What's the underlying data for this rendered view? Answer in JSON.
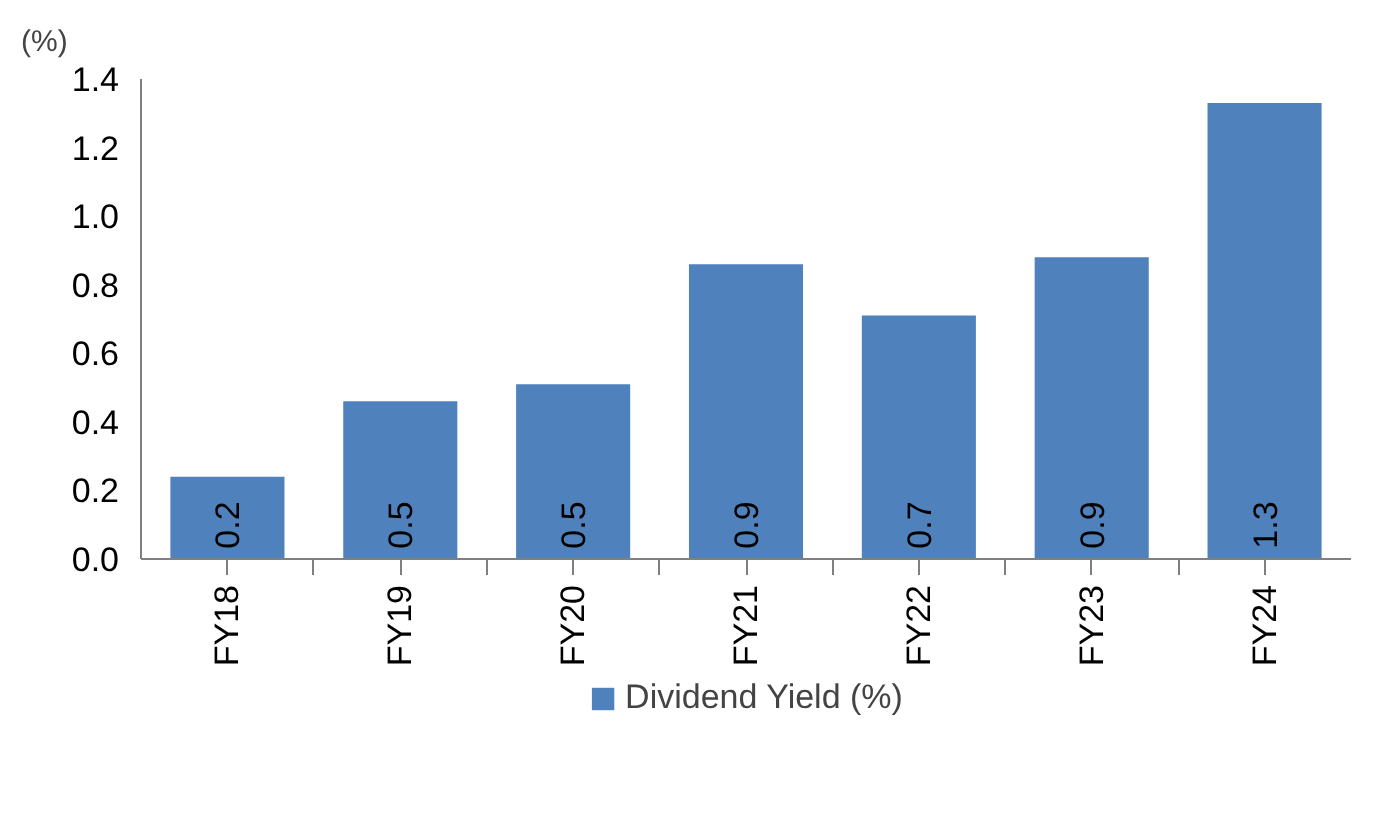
{
  "chart_data": {
    "type": "bar",
    "ylabel": "(%)",
    "categories": [
      "FY18",
      "FY19",
      "FY20",
      "FY21",
      "FY22",
      "FY23",
      "FY24"
    ],
    "series": [
      {
        "name": "Dividend Yield (%)",
        "color": "#4f81bd",
        "values": [
          0.24,
          0.46,
          0.51,
          0.86,
          0.71,
          0.88,
          1.33
        ],
        "value_labels": [
          "0.2",
          "0.5",
          "0.5",
          "0.9",
          "0.7",
          "0.9",
          "1.3"
        ]
      }
    ],
    "ylim": [
      0,
      1.4
    ],
    "yticks": [
      {
        "value": 0,
        "label": "0.0"
      },
      {
        "value": 0.2,
        "label": "0.2"
      },
      {
        "value": 0.4,
        "label": "0.4"
      },
      {
        "value": 0.6,
        "label": "0.6"
      },
      {
        "value": 0.8,
        "label": "0.8"
      },
      {
        "value": 1.0,
        "label": "1.0"
      },
      {
        "value": 1.2,
        "label": "1.2"
      },
      {
        "value": 1.4,
        "label": "1.4"
      }
    ],
    "grid": false,
    "legend": "bottom"
  }
}
